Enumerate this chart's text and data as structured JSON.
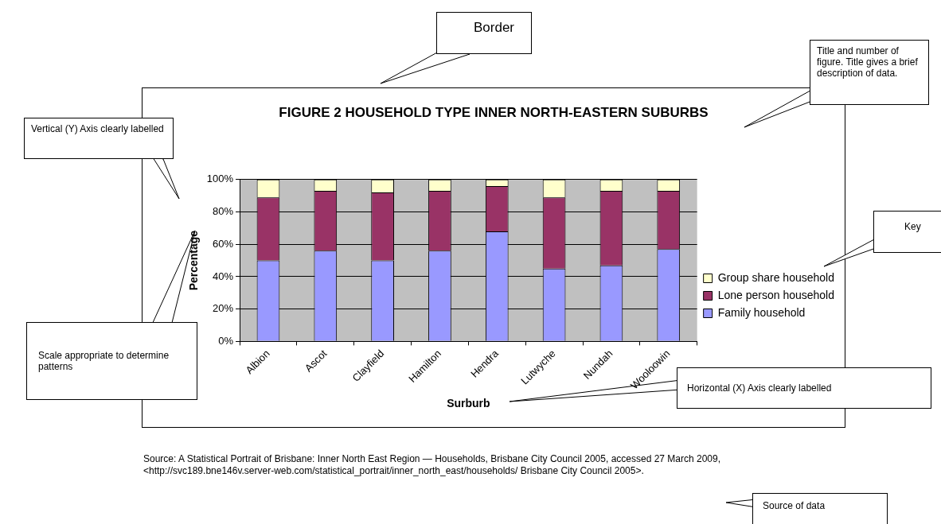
{
  "chart_data": {
    "type": "bar",
    "title": "FIGURE 2  HOUSEHOLD TYPE INNER NORTH-EASTERN SUBURBS",
    "xlabel": "Surburb",
    "ylabel": "Percentage",
    "categories": [
      "Albion",
      "Ascot",
      "Clayfield",
      "Hamilton",
      "Hendra",
      "Lutwyche",
      "Nundah",
      "Wooloowin"
    ],
    "series": [
      {
        "name": "Family household",
        "color": "#9999ff",
        "values": [
          50,
          56,
          50,
          56,
          68,
          45,
          47,
          57
        ]
      },
      {
        "name": "Lone person household",
        "color": "#993366",
        "values": [
          39,
          37,
          42,
          37,
          28,
          44,
          46,
          36
        ]
      },
      {
        "name": "Group share household",
        "color": "#ffffcc",
        "values": [
          11,
          7,
          8,
          7,
          4,
          11,
          7,
          7
        ]
      }
    ],
    "stacked": true,
    "ylim": [
      0,
      100
    ],
    "yticks": [
      {
        "value": 0,
        "label": "0%"
      },
      {
        "value": 20,
        "label": "20%"
      },
      {
        "value": 40,
        "label": "40%"
      },
      {
        "value": 60,
        "label": "60%"
      },
      {
        "value": 80,
        "label": "80%"
      },
      {
        "value": 100,
        "label": "100%"
      }
    ],
    "grid": "y",
    "legend": "right",
    "annotations": [
      "Border",
      "Title and number of figure. Title gives a brief description of data.",
      "Vertical (Y) Axis clearly labelled",
      "Key",
      "Scale appropriate to determine patterns",
      "Horizontal (X) Axis clearly labelled",
      "Source of data",
      "Source: A Statistical Portrait of Brisbane: Inner North East Region — Households, Brisbane City Council 2005, accessed 27 March 2009, <http://svc189.bne146v.server-web.com/statistical_portrait/inner_north_east/households/ Brisbane City Council 2005>."
    ]
  }
}
